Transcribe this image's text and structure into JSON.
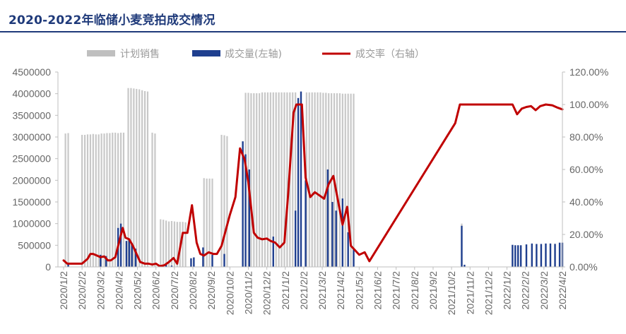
{
  "title": "2020-2022年临储小麦竞拍成交情况",
  "chart_data": {
    "type": "bar+line",
    "legend": [
      {
        "name": "计划销售",
        "color": "#bfbfbf"
      },
      {
        "name": "成交量(左轴)",
        "color": "#1f3f8f"
      },
      {
        "name": "成交率（右轴）",
        "color": "#c00000"
      }
    ],
    "y_left": {
      "min": 0,
      "max": 4500000,
      "ticks": [
        "0",
        "500000",
        "1000000",
        "1500000",
        "2000000",
        "2500000",
        "3000000",
        "3500000",
        "4000000",
        "4500000"
      ]
    },
    "y_right": {
      "min": 0,
      "max": 1.2,
      "ticks": [
        "0.00%",
        "20.00%",
        "40.00%",
        "60.00%",
        "80.00%",
        "100.00%",
        "120.00%"
      ]
    },
    "x_labels": [
      "2020/1/2",
      "2020/2/2",
      "2020/3/2",
      "2020/4/2",
      "2020/5/2",
      "2020/6/2",
      "2020/7/2",
      "2020/8/2",
      "2020/9/2",
      "2020/10/2",
      "2020/11/2",
      "2020/12/2",
      "2021/1/2",
      "2021/2/2",
      "2021/3/2",
      "2021/4/2",
      "2021/5/2",
      "2021/6/2",
      "2021/7/2",
      "2021/8/2",
      "2021/9/2",
      "2021/10/2",
      "2021/11/2",
      "2021/12/2",
      "2022/1/2",
      "2022/2/2",
      "2022/3/2",
      "2022/4/2"
    ],
    "planned": [
      [
        0.1,
        3080000
      ],
      [
        0.25,
        3090000
      ],
      [
        1.0,
        3050000
      ],
      [
        1.15,
        3050000
      ],
      [
        1.3,
        3060000
      ],
      [
        1.45,
        3060000
      ],
      [
        1.6,
        3070000
      ],
      [
        1.75,
        3060000
      ],
      [
        1.9,
        3060000
      ],
      [
        2.05,
        3080000
      ],
      [
        2.2,
        3080000
      ],
      [
        2.35,
        3090000
      ],
      [
        2.5,
        3090000
      ],
      [
        2.65,
        3100000
      ],
      [
        2.8,
        3100000
      ],
      [
        2.95,
        3090000
      ],
      [
        3.1,
        3100000
      ],
      [
        3.25,
        3100000
      ],
      [
        3.5,
        4130000
      ],
      [
        3.65,
        4130000
      ],
      [
        3.8,
        4120000
      ],
      [
        3.95,
        4110000
      ],
      [
        4.1,
        4100000
      ],
      [
        4.25,
        4080000
      ],
      [
        4.4,
        4060000
      ],
      [
        4.55,
        4050000
      ],
      [
        4.8,
        3100000
      ],
      [
        4.95,
        3080000
      ],
      [
        5.25,
        1100000
      ],
      [
        5.4,
        1090000
      ],
      [
        5.55,
        1070000
      ],
      [
        5.7,
        1050000
      ],
      [
        5.85,
        1060000
      ],
      [
        6.0,
        1050000
      ],
      [
        6.15,
        1040000
      ],
      [
        6.3,
        1040000
      ],
      [
        6.45,
        1040000
      ],
      [
        6.6,
        1030000
      ],
      [
        7.6,
        2050000
      ],
      [
        7.75,
        2040000
      ],
      [
        7.9,
        2040000
      ],
      [
        8.05,
        2040000
      ],
      [
        8.55,
        3050000
      ],
      [
        8.7,
        3040000
      ],
      [
        8.85,
        3020000
      ],
      [
        9.85,
        4020000
      ],
      [
        10.0,
        4020000
      ],
      [
        10.15,
        4010000
      ],
      [
        10.3,
        4010000
      ],
      [
        10.45,
        4010000
      ],
      [
        10.6,
        4010000
      ],
      [
        10.75,
        4030000
      ],
      [
        10.9,
        4030000
      ],
      [
        11.05,
        4030000
      ],
      [
        11.2,
        4030000
      ],
      [
        11.35,
        4030000
      ],
      [
        11.5,
        4030000
      ],
      [
        11.65,
        4030000
      ],
      [
        11.8,
        4030000
      ],
      [
        11.95,
        4030000
      ],
      [
        12.1,
        4030000
      ],
      [
        12.25,
        4030000
      ],
      [
        12.4,
        4030000
      ],
      [
        12.55,
        4030000
      ],
      [
        13.15,
        4030000
      ],
      [
        13.3,
        4030000
      ],
      [
        13.45,
        4030000
      ],
      [
        13.6,
        4030000
      ],
      [
        13.75,
        4030000
      ],
      [
        13.9,
        4030000
      ],
      [
        14.05,
        4020000
      ],
      [
        14.2,
        4020000
      ],
      [
        14.35,
        4010000
      ],
      [
        14.5,
        4010000
      ],
      [
        14.65,
        4010000
      ],
      [
        14.8,
        4010000
      ],
      [
        14.95,
        4010000
      ],
      [
        15.1,
        4000000
      ],
      [
        15.25,
        4000000
      ],
      [
        15.4,
        4000000
      ],
      [
        15.55,
        4000000
      ],
      [
        15.7,
        4000000
      ],
      [
        21.55,
        1000000
      ],
      [
        24.3,
        500000
      ],
      [
        24.45,
        500000
      ],
      [
        24.6,
        500000
      ],
      [
        24.75,
        500000
      ],
      [
        25.05,
        510000
      ],
      [
        25.35,
        520000
      ],
      [
        25.6,
        530000
      ],
      [
        25.85,
        530000
      ],
      [
        26.1,
        540000
      ],
      [
        26.35,
        540000
      ],
      [
        26.6,
        540000
      ],
      [
        26.85,
        550000
      ],
      [
        27.0,
        550000
      ]
    ],
    "volume": [
      [
        0.25,
        60000
      ],
      [
        2.0,
        280000
      ],
      [
        2.3,
        250000
      ],
      [
        2.95,
        900000
      ],
      [
        3.1,
        1000000
      ],
      [
        3.4,
        600000
      ],
      [
        3.55,
        650000
      ],
      [
        3.7,
        550000
      ],
      [
        3.9,
        420000
      ],
      [
        5.55,
        50000
      ],
      [
        5.85,
        30000
      ],
      [
        6.9,
        200000
      ],
      [
        7.05,
        220000
      ],
      [
        7.55,
        450000
      ],
      [
        8.05,
        280000
      ],
      [
        8.7,
        300000
      ],
      [
        9.7,
        2900000
      ],
      [
        9.85,
        2600000
      ],
      [
        10.05,
        2250000
      ],
      [
        11.35,
        700000
      ],
      [
        12.55,
        1300000
      ],
      [
        12.7,
        3900000
      ],
      [
        12.85,
        4050000
      ],
      [
        13.1,
        2000000
      ],
      [
        14.3,
        2250000
      ],
      [
        14.55,
        1500000
      ],
      [
        14.75,
        1300000
      ],
      [
        15.1,
        1580000
      ],
      [
        15.4,
        800000
      ],
      [
        15.7,
        400000
      ],
      [
        21.55,
        950000
      ],
      [
        21.7,
        50000
      ],
      [
        24.3,
        510000
      ],
      [
        24.45,
        500000
      ],
      [
        24.6,
        500000
      ],
      [
        24.75,
        500000
      ],
      [
        25.05,
        520000
      ],
      [
        25.35,
        540000
      ],
      [
        25.6,
        530000
      ],
      [
        25.85,
        530000
      ],
      [
        26.1,
        540000
      ],
      [
        26.35,
        540000
      ],
      [
        26.6,
        530000
      ],
      [
        26.85,
        560000
      ],
      [
        27.0,
        560000
      ]
    ],
    "rate": [
      [
        0.0,
        0.04
      ],
      [
        0.2,
        0.02
      ],
      [
        0.5,
        0.02
      ],
      [
        0.7,
        0.02
      ],
      [
        1.0,
        0.02
      ],
      [
        1.3,
        0.05
      ],
      [
        1.45,
        0.08
      ],
      [
        1.6,
        0.08
      ],
      [
        1.8,
        0.07
      ],
      [
        2.0,
        0.06
      ],
      [
        2.2,
        0.065
      ],
      [
        2.4,
        0.04
      ],
      [
        2.55,
        0.04
      ],
      [
        2.8,
        0.06
      ],
      [
        3.0,
        0.15
      ],
      [
        3.2,
        0.24
      ],
      [
        3.35,
        0.18
      ],
      [
        3.55,
        0.17
      ],
      [
        3.75,
        0.13
      ],
      [
        3.95,
        0.08
      ],
      [
        4.15,
        0.03
      ],
      [
        4.4,
        0.02
      ],
      [
        4.6,
        0.02
      ],
      [
        4.8,
        0.015
      ],
      [
        5.0,
        0.02
      ],
      [
        5.2,
        0.005
      ],
      [
        5.45,
        0.01
      ],
      [
        5.7,
        0.03
      ],
      [
        5.95,
        0.055
      ],
      [
        6.15,
        0.02
      ],
      [
        6.45,
        0.21
      ],
      [
        6.7,
        0.21
      ],
      [
        6.95,
        0.38
      ],
      [
        7.2,
        0.15
      ],
      [
        7.4,
        0.08
      ],
      [
        7.6,
        0.07
      ],
      [
        7.85,
        0.09
      ],
      [
        8.1,
        0.08
      ],
      [
        8.3,
        0.08
      ],
      [
        8.55,
        0.13
      ],
      [
        9.0,
        0.32
      ],
      [
        9.3,
        0.43
      ],
      [
        9.55,
        0.73
      ],
      [
        9.8,
        0.66
      ],
      [
        10.0,
        0.52
      ],
      [
        10.3,
        0.21
      ],
      [
        10.5,
        0.18
      ],
      [
        10.75,
        0.17
      ],
      [
        11.0,
        0.175
      ],
      [
        11.2,
        0.16
      ],
      [
        11.45,
        0.15
      ],
      [
        11.7,
        0.12
      ],
      [
        11.95,
        0.15
      ],
      [
        12.15,
        0.44
      ],
      [
        12.45,
        0.95
      ],
      [
        12.6,
        1.0
      ],
      [
        12.9,
        1.0
      ],
      [
        13.1,
        0.55
      ],
      [
        13.35,
        0.43
      ],
      [
        13.6,
        0.46
      ],
      [
        13.85,
        0.44
      ],
      [
        14.1,
        0.42
      ],
      [
        14.35,
        0.51
      ],
      [
        14.6,
        0.56
      ],
      [
        14.85,
        0.41
      ],
      [
        15.1,
        0.26
      ],
      [
        15.35,
        0.37
      ],
      [
        15.55,
        0.13
      ],
      [
        15.8,
        0.1
      ],
      [
        16.0,
        0.075
      ],
      [
        16.3,
        0.09
      ],
      [
        16.55,
        0.035
      ],
      [
        21.2,
        0.885
      ],
      [
        21.45,
        1.0
      ],
      [
        24.3,
        1.0
      ],
      [
        24.55,
        0.94
      ],
      [
        24.8,
        0.975
      ],
      [
        25.05,
        0.985
      ],
      [
        25.3,
        0.99
      ],
      [
        25.55,
        0.965
      ],
      [
        25.8,
        0.99
      ],
      [
        26.1,
        1.0
      ],
      [
        26.45,
        0.995
      ],
      [
        26.75,
        0.98
      ],
      [
        27.0,
        0.97
      ]
    ]
  }
}
